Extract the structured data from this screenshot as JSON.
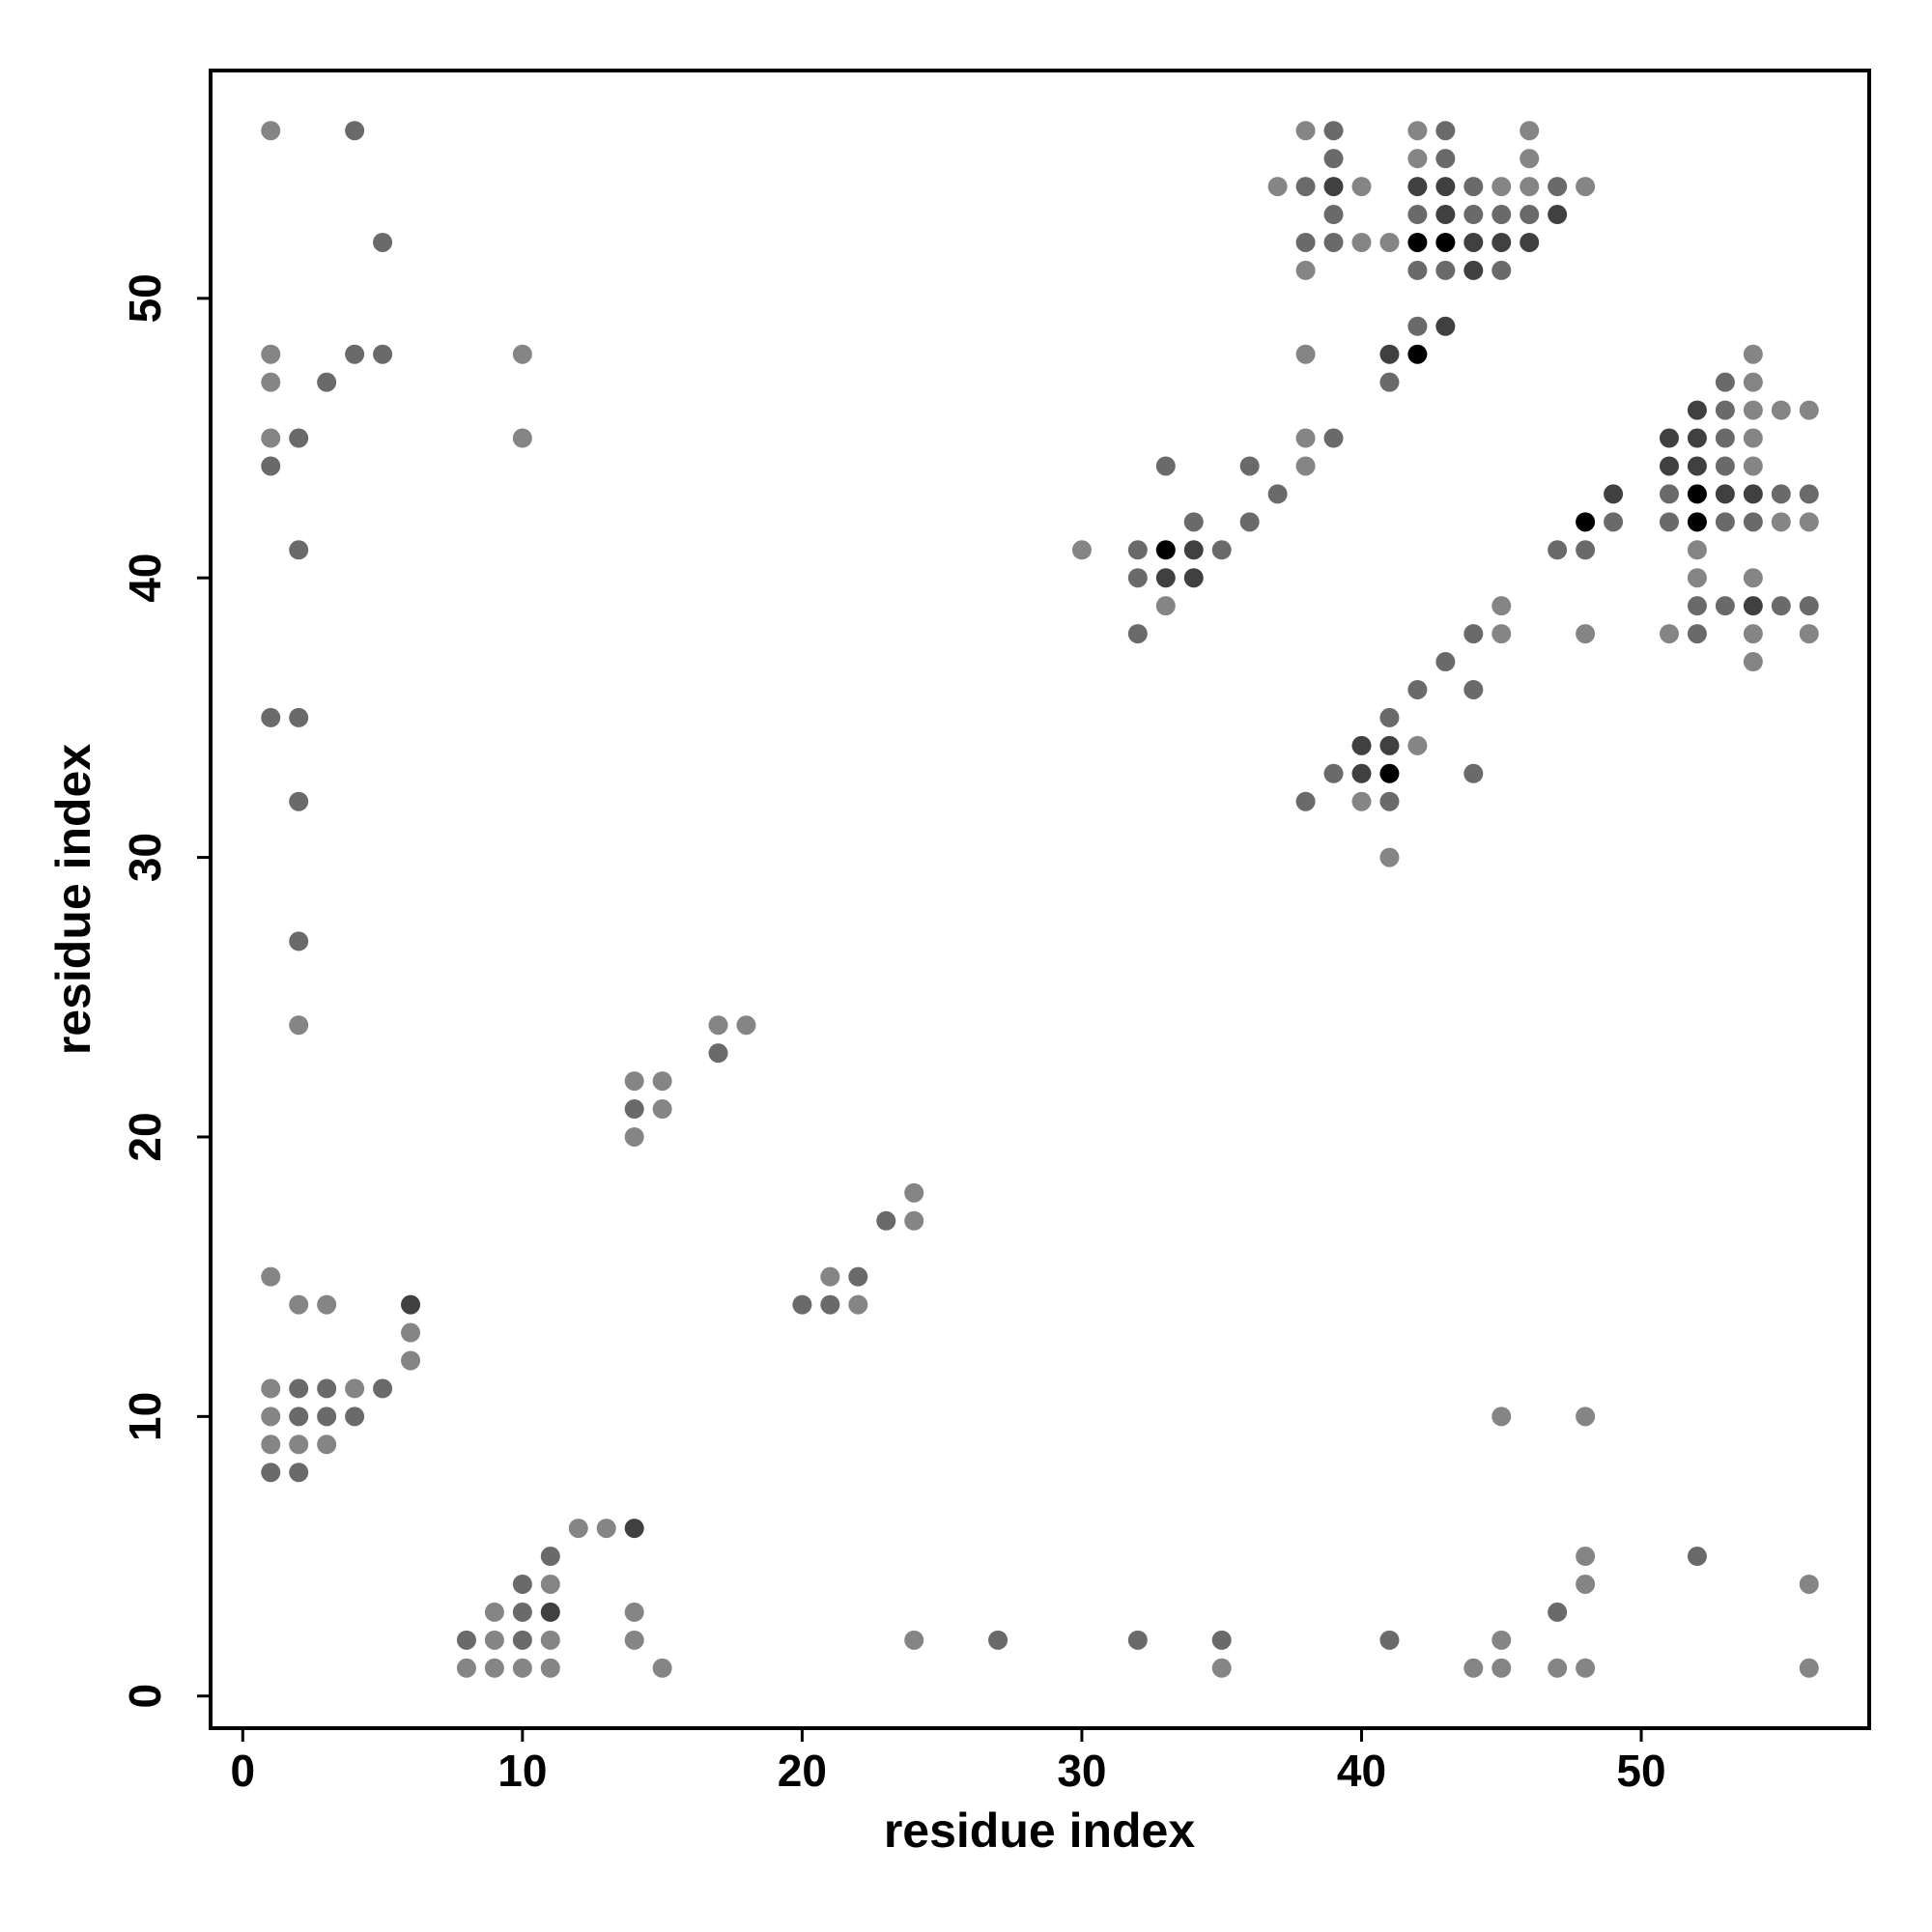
{
  "chart_data": {
    "type": "scatter",
    "x_label": "residue index",
    "y_label": "residue index",
    "xlim": [
      -1.15,
      58.15
    ],
    "ylim": [
      -1.15,
      58.15
    ],
    "xticks": [
      0,
      10,
      20,
      30,
      40,
      50
    ],
    "yticks": [
      0,
      10,
      20,
      30,
      40,
      50
    ],
    "x": [
      1,
      4,
      38,
      39,
      42,
      43,
      46,
      39,
      42,
      43,
      46,
      37,
      38,
      39,
      40,
      42,
      43,
      44,
      45,
      46,
      47,
      48,
      39,
      42,
      43,
      44,
      45,
      46,
      47,
      5,
      38,
      39,
      40,
      41,
      42,
      43,
      44,
      45,
      46,
      38,
      42,
      43,
      44,
      45,
      42,
      43,
      1,
      4,
      5,
      10,
      38,
      41,
      42,
      54,
      1,
      3,
      41,
      53,
      54,
      52,
      53,
      54,
      55,
      56,
      1,
      2,
      10,
      38,
      39,
      51,
      52,
      53,
      54,
      1,
      33,
      36,
      38,
      51,
      52,
      53,
      54,
      37,
      49,
      51,
      52,
      53,
      54,
      55,
      56,
      34,
      36,
      48,
      49,
      51,
      52,
      53,
      54,
      55,
      56,
      2,
      30,
      32,
      33,
      34,
      35,
      47,
      48,
      52,
      32,
      33,
      34,
      52,
      54,
      33,
      45,
      52,
      53,
      54,
      55,
      56,
      32,
      44,
      45,
      48,
      51,
      52,
      54,
      56,
      43,
      54,
      42,
      44,
      1,
      2,
      41,
      40,
      41,
      42,
      39,
      40,
      41,
      44,
      2,
      38,
      40,
      41,
      41,
      2,
      2,
      17,
      18,
      17,
      14,
      15,
      14,
      15,
      14,
      24,
      23,
      24,
      1,
      21,
      22,
      2,
      3,
      6,
      20,
      21,
      22,
      6,
      6,
      1,
      2,
      3,
      4,
      5,
      1,
      2,
      3,
      4,
      45,
      48,
      1,
      2,
      3,
      1,
      2,
      12,
      13,
      14,
      11,
      48,
      52,
      10,
      11,
      48,
      56,
      9,
      10,
      11,
      14,
      47,
      8,
      9,
      10,
      11,
      14,
      24,
      27,
      32,
      35,
      41,
      45,
      8,
      9,
      10,
      11,
      15,
      35,
      44,
      45,
      47,
      48,
      56
    ],
    "values": [
      56,
      56,
      56,
      56,
      56,
      56,
      56,
      55,
      55,
      55,
      55,
      54,
      54,
      54,
      54,
      54,
      54,
      54,
      54,
      54,
      54,
      54,
      53,
      53,
      53,
      53,
      53,
      53,
      53,
      52,
      52,
      52,
      52,
      52,
      52,
      52,
      52,
      52,
      52,
      51,
      51,
      51,
      51,
      51,
      49,
      49,
      48,
      48,
      48,
      48,
      48,
      48,
      48,
      48,
      47,
      47,
      47,
      47,
      47,
      46,
      46,
      46,
      46,
      46,
      45,
      45,
      45,
      45,
      45,
      45,
      45,
      45,
      45,
      44,
      44,
      44,
      44,
      44,
      44,
      44,
      44,
      43,
      43,
      43,
      43,
      43,
      43,
      43,
      43,
      42,
      42,
      42,
      42,
      42,
      42,
      42,
      42,
      42,
      42,
      41,
      41,
      41,
      41,
      41,
      41,
      41,
      41,
      41,
      40,
      40,
      40,
      40,
      40,
      39,
      39,
      39,
      39,
      39,
      39,
      39,
      38,
      38,
      38,
      38,
      38,
      38,
      38,
      38,
      37,
      37,
      36,
      36,
      35,
      35,
      35,
      34,
      34,
      34,
      33,
      33,
      33,
      33,
      32,
      32,
      32,
      32,
      30,
      27,
      24,
      24,
      24,
      23,
      22,
      22,
      21,
      21,
      20,
      18,
      17,
      17,
      15,
      15,
      15,
      14,
      14,
      14,
      14,
      14,
      14,
      13,
      12,
      11,
      11,
      11,
      11,
      11,
      10,
      10,
      10,
      10,
      10,
      10,
      9,
      9,
      9,
      8,
      8,
      6,
      6,
      6,
      5,
      5,
      5,
      4,
      4,
      4,
      4,
      3,
      3,
      3,
      3,
      3,
      2,
      2,
      2,
      2,
      2,
      2,
      2,
      2,
      2,
      2,
      2,
      1,
      1,
      1,
      1,
      1,
      1,
      1,
      1,
      1,
      1,
      1
    ],
    "colors": [
      "#858585",
      "#6a6a6a",
      "#858585",
      "#6a6a6a",
      "#858585",
      "#6a6a6a",
      "#858585",
      "#6a6a6a",
      "#858585",
      "#6a6a6a",
      "#858585",
      "#858585",
      "#6a6a6a",
      "#404040",
      "#858585",
      "#404040",
      "#404040",
      "#6a6a6a",
      "#858585",
      "#858585",
      "#6a6a6a",
      "#858585",
      "#6a6a6a",
      "#6a6a6a",
      "#404040",
      "#6a6a6a",
      "#6a6a6a",
      "#6a6a6a",
      "#404040",
      "#6a6a6a",
      "#6a6a6a",
      "#6a6a6a",
      "#858585",
      "#858585",
      "#000000",
      "#000000",
      "#404040",
      "#404040",
      "#404040",
      "#858585",
      "#6a6a6a",
      "#6a6a6a",
      "#404040",
      "#6a6a6a",
      "#6a6a6a",
      "#404040",
      "#858585",
      "#6a6a6a",
      "#6a6a6a",
      "#858585",
      "#858585",
      "#404040",
      "#000000",
      "#858585",
      "#858585",
      "#6a6a6a",
      "#6a6a6a",
      "#6a6a6a",
      "#858585",
      "#404040",
      "#6a6a6a",
      "#858585",
      "#858585",
      "#858585",
      "#858585",
      "#6a6a6a",
      "#858585",
      "#858585",
      "#6a6a6a",
      "#404040",
      "#404040",
      "#6a6a6a",
      "#858585",
      "#6a6a6a",
      "#6a6a6a",
      "#6a6a6a",
      "#858585",
      "#404040",
      "#404040",
      "#6a6a6a",
      "#858585",
      "#6a6a6a",
      "#404040",
      "#6a6a6a",
      "#000000",
      "#404040",
      "#404040",
      "#6a6a6a",
      "#6a6a6a",
      "#6a6a6a",
      "#6a6a6a",
      "#000000",
      "#6a6a6a",
      "#6a6a6a",
      "#000000",
      "#6a6a6a",
      "#6a6a6a",
      "#858585",
      "#858585",
      "#6a6a6a",
      "#858585",
      "#6a6a6a",
      "#000000",
      "#404040",
      "#6a6a6a",
      "#6a6a6a",
      "#6a6a6a",
      "#858585",
      "#6a6a6a",
      "#404040",
      "#404040",
      "#858585",
      "#858585",
      "#858585",
      "#858585",
      "#6a6a6a",
      "#6a6a6a",
      "#404040",
      "#6a6a6a",
      "#6a6a6a",
      "#6a6a6a",
      "#6a6a6a",
      "#858585",
      "#858585",
      "#858585",
      "#6a6a6a",
      "#858585",
      "#858585",
      "#6a6a6a",
      "#858585",
      "#6a6a6a",
      "#6a6a6a",
      "#6a6a6a",
      "#6a6a6a",
      "#6a6a6a",
      "#404040",
      "#404040",
      "#858585",
      "#6a6a6a",
      "#404040",
      "#000000",
      "#6a6a6a",
      "#6a6a6a",
      "#6a6a6a",
      "#858585",
      "#6a6a6a",
      "#858585",
      "#6a6a6a",
      "#858585",
      "#858585",
      "#858585",
      "#6a6a6a",
      "#858585",
      "#858585",
      "#6a6a6a",
      "#858585",
      "#858585",
      "#858585",
      "#6a6a6a",
      "#858585",
      "#858585",
      "#858585",
      "#6a6a6a",
      "#858585",
      "#858585",
      "#404040",
      "#6a6a6a",
      "#6a6a6a",
      "#858585",
      "#858585",
      "#858585",
      "#858585",
      "#6a6a6a",
      "#6a6a6a",
      "#858585",
      "#6a6a6a",
      "#858585",
      "#6a6a6a",
      "#6a6a6a",
      "#6a6a6a",
      "#858585",
      "#858585",
      "#858585",
      "#858585",
      "#858585",
      "#6a6a6a",
      "#6a6a6a",
      "#858585",
      "#858585",
      "#404040",
      "#6a6a6a",
      "#858585",
      "#6a6a6a",
      "#6a6a6a",
      "#858585",
      "#858585",
      "#858585",
      "#858585",
      "#6a6a6a",
      "#404040",
      "#858585",
      "#6a6a6a",
      "#6a6a6a",
      "#858585",
      "#6a6a6a",
      "#858585",
      "#858585",
      "#858585",
      "#6a6a6a",
      "#6a6a6a",
      "#6a6a6a",
      "#6a6a6a",
      "#858585",
      "#858585",
      "#858585",
      "#858585",
      "#858585",
      "#858585",
      "#858585",
      "#858585",
      "#858585",
      "#858585",
      "#858585",
      "#858585"
    ]
  }
}
